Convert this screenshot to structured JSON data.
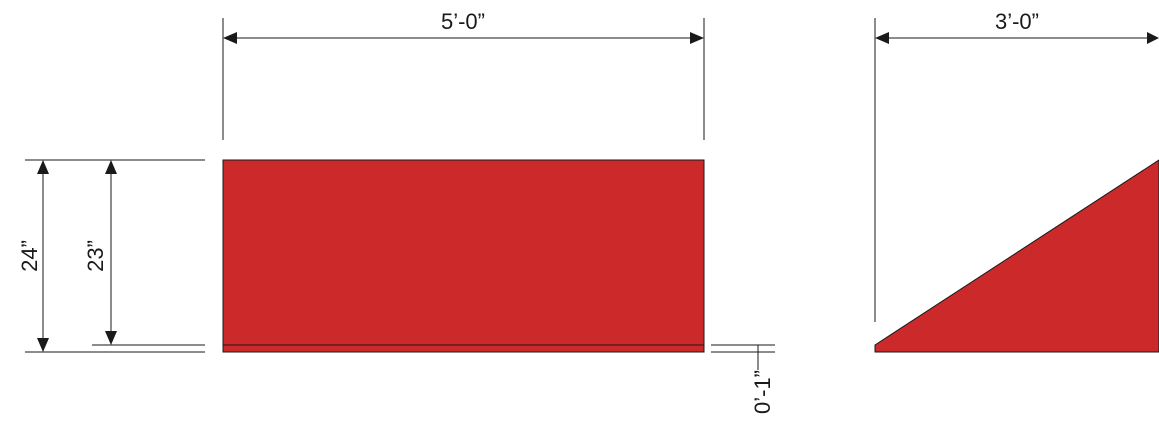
{
  "diagram": {
    "front_view": {
      "width_label": "5’-0”",
      "height_outer_label": "24”",
      "height_inner_label": "23”",
      "base_label": "0’-1”"
    },
    "side_view": {
      "width_label": "3’-0”"
    },
    "colors": {
      "fill": "#cc2a2a",
      "line": "#1a1a1a"
    }
  }
}
